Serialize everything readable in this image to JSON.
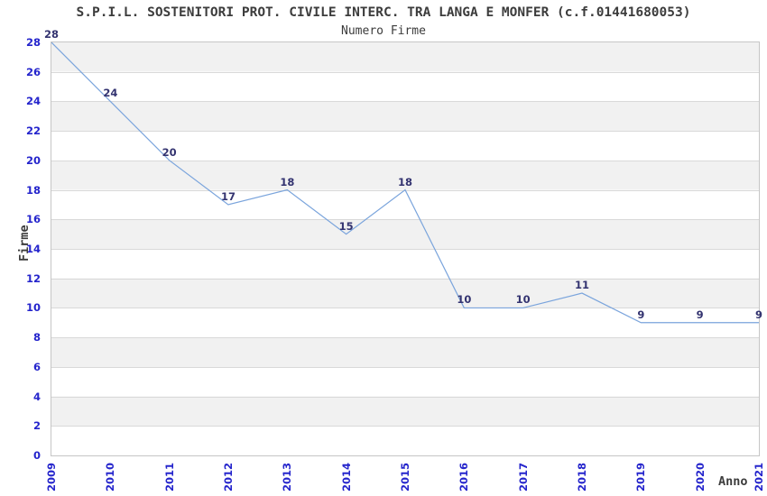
{
  "chart_data": {
    "type": "line",
    "title": "S.P.I.L. SOSTENITORI PROT. CIVILE INTERC. TRA LANGA E MONFER (c.f.01441680053)",
    "subtitle": "Numero Firme",
    "xlabel": "Anno",
    "ylabel": "Firme",
    "x": [
      "2009",
      "2010",
      "2011",
      "2012",
      "2013",
      "2014",
      "2015",
      "2016",
      "2017",
      "2018",
      "2019",
      "2020",
      "2021"
    ],
    "values": [
      28,
      24,
      20,
      17,
      18,
      15,
      18,
      10,
      10,
      11,
      9,
      9,
      9
    ],
    "ylim": [
      0,
      28
    ],
    "ytick_step": 2,
    "grid": "horizontal gridlines every 2 units with alternating shaded bands",
    "legend": "none",
    "point_labels_shown": true
  },
  "colors": {
    "background": "#ffffff",
    "title_text": "#3c3c3c",
    "tick_label": "#2424cc",
    "data_label": "#333370",
    "line": "#7aa4dc",
    "band_gray": "#f1f1f1",
    "band_white": "#ffffff",
    "gridline": "#d9d9d9",
    "plot_border": "#c6c6c6"
  }
}
